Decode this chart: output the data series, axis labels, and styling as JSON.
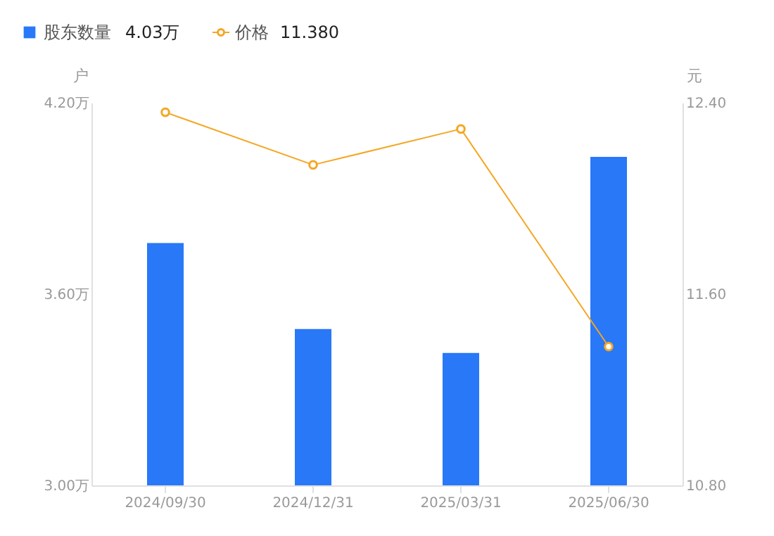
{
  "chart_data": {
    "type": "bar",
    "categories": [
      "2024/09/30",
      "2024/12/31",
      "2025/03/31",
      "2025/06/30"
    ],
    "series": [
      {
        "name": "股东数量",
        "color": "#2878f8",
        "values": [
          3.76,
          3.49,
          3.415,
          4.03
        ]
      },
      {
        "name": "价格",
        "color": "#f5a623",
        "type": "line",
        "axis": "y2",
        "marker": "circle",
        "values": [
          12.36,
          12.14,
          12.29,
          11.38
        ]
      }
    ],
    "ylabel": "户",
    "y2label": "元",
    "ylim": [
      3.0,
      4.2
    ],
    "yticks": [
      {
        "value": 3.0,
        "label": "3.00万"
      },
      {
        "value": 3.6,
        "label": "3.60万"
      },
      {
        "value": 4.2,
        "label": "4.20万"
      }
    ],
    "y2lim": [
      10.8,
      12.4
    ],
    "y2ticks": [
      {
        "value": 10.8,
        "label": "10.80"
      },
      {
        "value": 11.6,
        "label": "11.60"
      },
      {
        "value": 12.4,
        "label": "12.40"
      }
    ],
    "annotations": [
      "4.03万",
      "11.380"
    ],
    "legend": "top left",
    "grid": false
  }
}
